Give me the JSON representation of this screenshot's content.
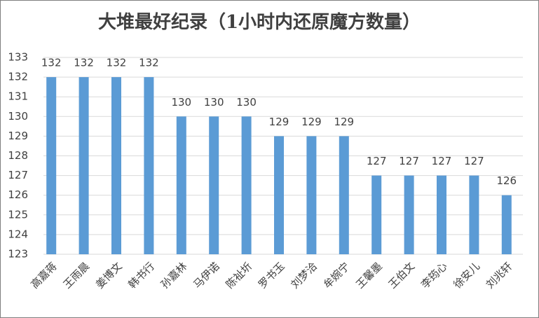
{
  "chart_data": {
    "type": "bar",
    "title": "大堆最好纪录（1小时内还原魔方数量）",
    "categories": [
      "高嘉蒋",
      "王雨晨",
      "姜博文",
      "韩书行",
      "孙嘉林",
      "马伊诺",
      "陈祉圻",
      "罗书玉",
      "刘梦洽",
      "牟婉宁",
      "王馨墨",
      "王伯文",
      "李筠心",
      "徐安儿",
      "刘兆轩"
    ],
    "values": [
      132,
      132,
      132,
      132,
      130,
      130,
      130,
      129,
      129,
      129,
      127,
      127,
      127,
      127,
      126
    ],
    "color": "#5b9bd5",
    "ylim": [
      123,
      133
    ],
    "yticks": [
      123,
      124,
      125,
      126,
      127,
      128,
      129,
      130,
      131,
      132,
      133
    ],
    "grid": true
  }
}
